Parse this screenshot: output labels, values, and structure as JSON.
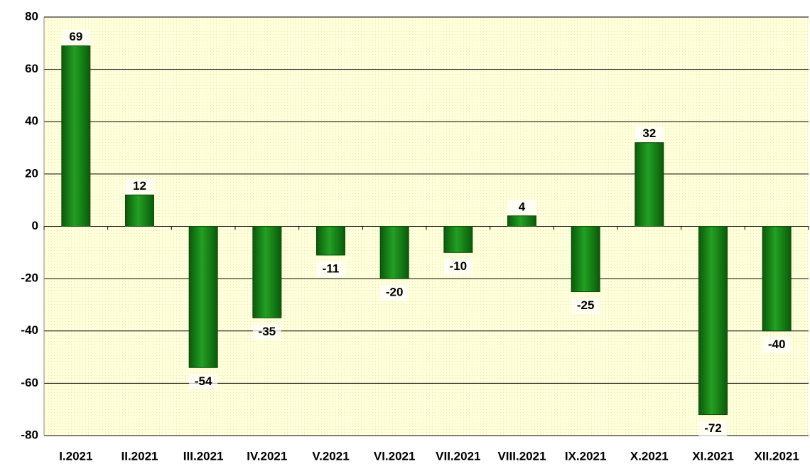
{
  "chart_data": {
    "type": "bar",
    "categories": [
      "I.2021",
      "II.2021",
      "III.2021",
      "IV.2021",
      "V.2021",
      "VI.2021",
      "VII.2021",
      "VIII.2021",
      "IX.2021",
      "X.2021",
      "XI.2021",
      "XII.2021"
    ],
    "values": [
      69,
      12,
      -54,
      -35,
      -11,
      -20,
      -10,
      4,
      -25,
      32,
      -72,
      -40
    ],
    "color": "#1a8a1a",
    "ylim": [
      -80,
      80
    ],
    "yticks": [
      -80,
      -60,
      -40,
      -20,
      0,
      20,
      40,
      60,
      80
    ],
    "grid": true
  }
}
